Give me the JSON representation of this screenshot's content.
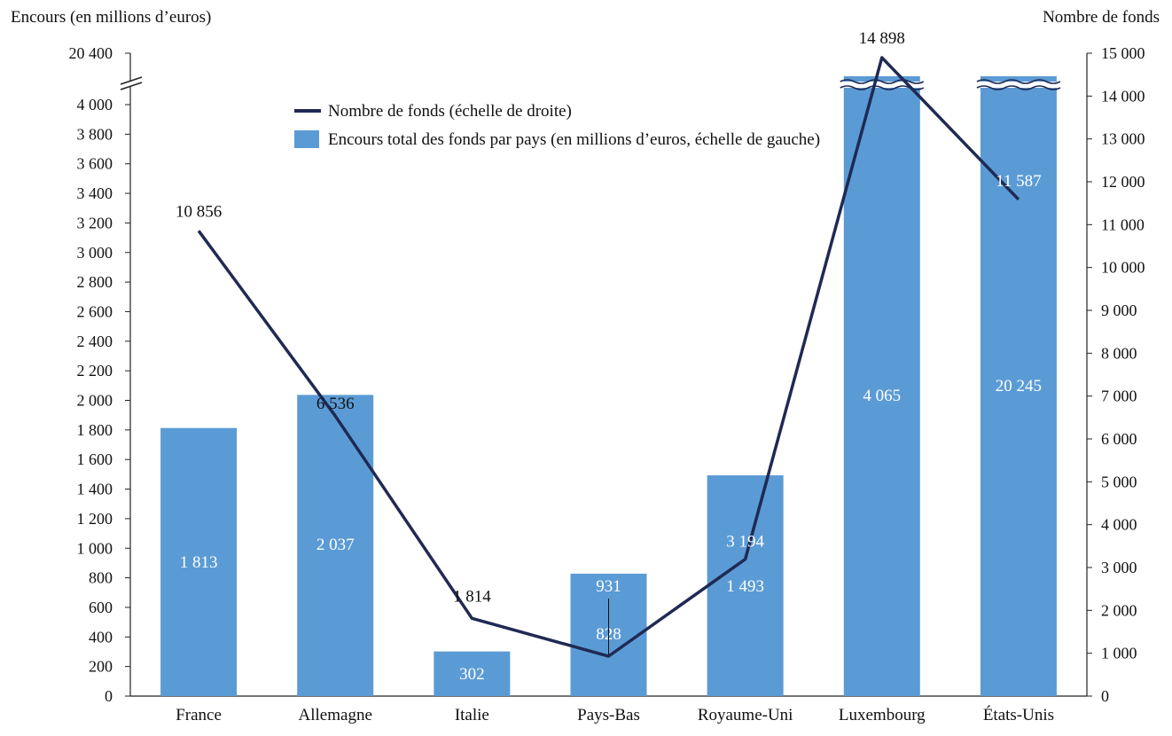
{
  "chart_data": {
    "type": "bar",
    "ylabel_left": "Encours (en millions d’euros)",
    "ylabel_right": "Nombre de fonds",
    "categories": [
      "France",
      "Allemagne",
      "Italie",
      "Pays-Bas",
      "Royaume-Uni",
      "Luxembourg",
      "États-Unis"
    ],
    "series": [
      {
        "name": "Encours total des fonds par pays (en millions d’euros, échelle de gauche)",
        "kind": "bar",
        "axis": "left",
        "color": "#5b9bd5",
        "values": [
          1813,
          2037,
          302,
          828,
          1493,
          4065,
          20245
        ],
        "labels": [
          "1 813",
          "2 037",
          "302",
          "828",
          "1 493",
          "4 065",
          "20 245"
        ]
      },
      {
        "name": "Nombre de fonds (échelle de droite)",
        "kind": "line",
        "axis": "right",
        "color": "#1f2a54",
        "values": [
          10856,
          6536,
          1814,
          931,
          3194,
          14898,
          11587
        ],
        "labels": [
          "10 856",
          "6 536",
          "1 814",
          "931",
          "3 194",
          "14 898",
          "11 587"
        ]
      }
    ],
    "y_left": {
      "ticks": [
        0,
        200,
        400,
        600,
        800,
        1000,
        1200,
        1400,
        1600,
        1800,
        2000,
        2200,
        2400,
        2600,
        2800,
        3000,
        3200,
        3400,
        3600,
        3800,
        4000
      ],
      "tick_labels": [
        "0",
        "200",
        "400",
        "600",
        "800",
        "1 000",
        "1 200",
        "1 400",
        "1 600",
        "1 800",
        "2 000",
        "2 200",
        "2 400",
        "2 600",
        "2 800",
        "3 000",
        "3 200",
        "3 400",
        "3 600",
        "3 800",
        "4 000"
      ],
      "break_value": 20400,
      "break_label": "20 400",
      "ylim": [
        0,
        4000
      ]
    },
    "y_right": {
      "ticks": [
        0,
        1000,
        2000,
        3000,
        4000,
        5000,
        6000,
        7000,
        8000,
        9000,
        10000,
        11000,
        12000,
        13000,
        14000,
        15000
      ],
      "tick_labels": [
        "0",
        "1 000",
        "2 000",
        "3 000",
        "4 000",
        "5 000",
        "6 000",
        "7 000",
        "8 000",
        "9 000",
        "10 000",
        "11 000",
        "12 000",
        "13 000",
        "14 000",
        "15 000"
      ],
      "ylim": [
        0,
        15000
      ]
    },
    "axis_break": true,
    "grid": false,
    "legend_position": "top-center"
  }
}
